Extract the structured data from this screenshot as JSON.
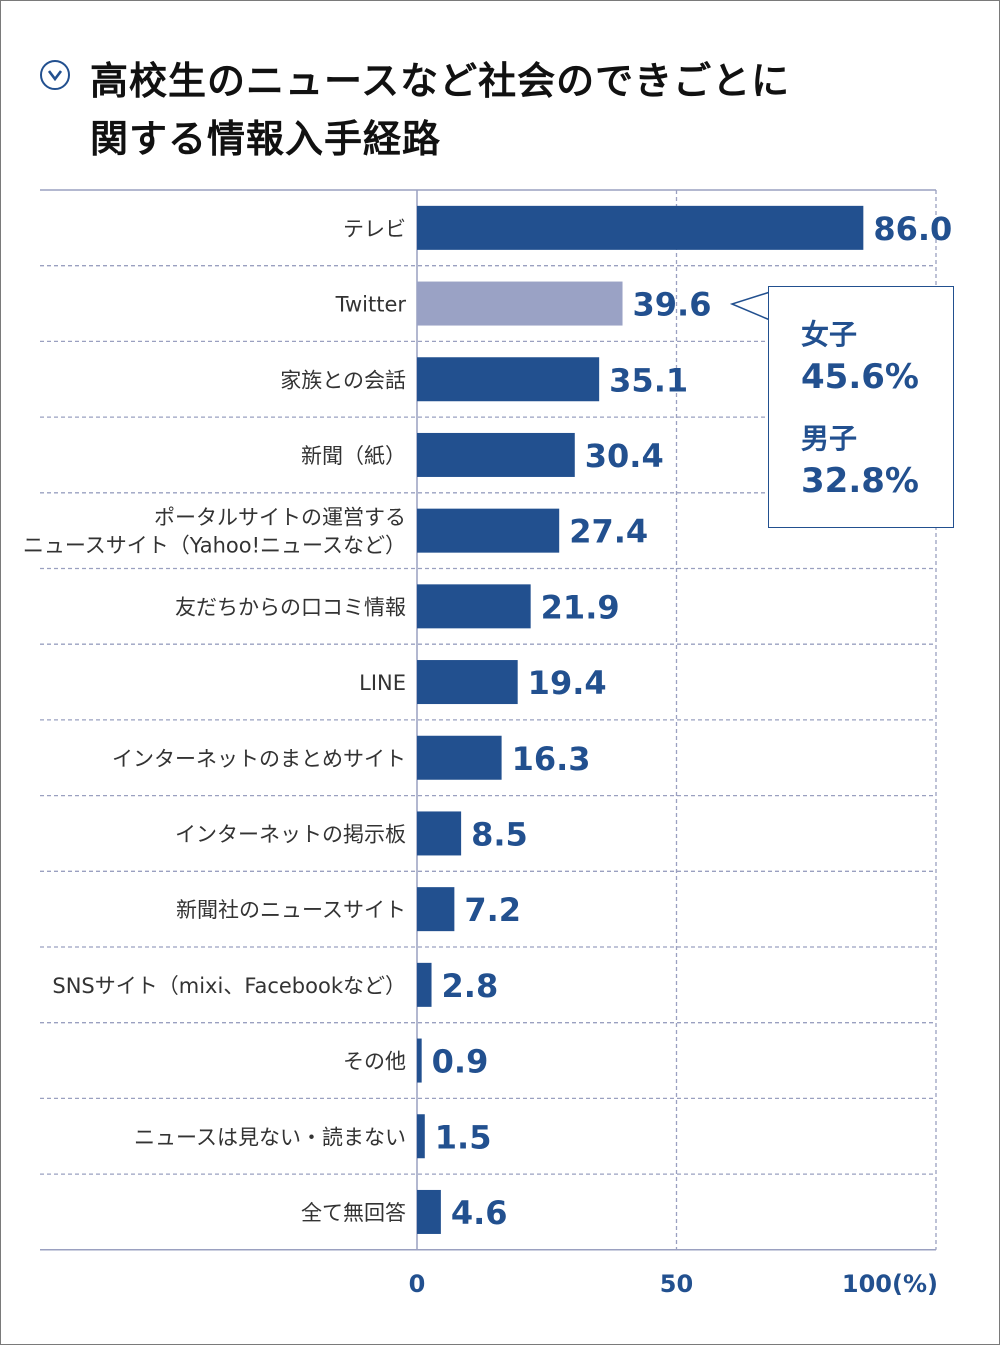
{
  "title": {
    "line1": "高校生のニュースなど社会のできごとに",
    "line2": "関する情報入手経路"
  },
  "icon": "chevron-down-circle-icon",
  "colors": {
    "bar": "#22508f",
    "highlight_bar": "#9aa2c5",
    "grid": "#9aa0c0",
    "text": "#333333"
  },
  "chart_data": {
    "type": "bar",
    "orientation": "horizontal",
    "categories": [
      [
        "テレビ"
      ],
      [
        "Twitter"
      ],
      [
        "家族との会話"
      ],
      [
        "新聞（紙）"
      ],
      [
        "ポータルサイトの運営する",
        "ニュースサイト（Yahoo!ニュースなど）"
      ],
      [
        "友だちからの口コミ情報"
      ],
      [
        "LINE"
      ],
      [
        "インターネットのまとめサイト"
      ],
      [
        "インターネットの掲示板"
      ],
      [
        "新聞社のニュースサイト"
      ],
      [
        "SNSサイト（mixi、Facebookなど）"
      ],
      [
        "その他"
      ],
      [
        "ニュースは見ない・読まない"
      ],
      [
        "全て無回答"
      ]
    ],
    "values": [
      86.0,
      39.6,
      35.1,
      30.4,
      27.4,
      21.9,
      19.4,
      16.3,
      8.5,
      7.2,
      2.8,
      0.9,
      1.5,
      4.6
    ],
    "value_labels": [
      "86.0",
      "39.6",
      "35.1",
      "30.4",
      "27.4",
      "21.9",
      "19.4",
      "16.3",
      "8.5",
      "7.2",
      "2.8",
      "0.9",
      "1.5",
      "4.6"
    ],
    "highlight_index": 1,
    "xlim": [
      0,
      100
    ],
    "x_ticks": [
      0,
      50,
      100
    ],
    "x_tick_labels": [
      "0",
      "50",
      "100(%)"
    ],
    "grid": true,
    "annotation": {
      "target": "Twitter",
      "female_label": "女子",
      "female_value": "45.6%",
      "male_label": "男子",
      "male_value": "32.8%"
    }
  }
}
